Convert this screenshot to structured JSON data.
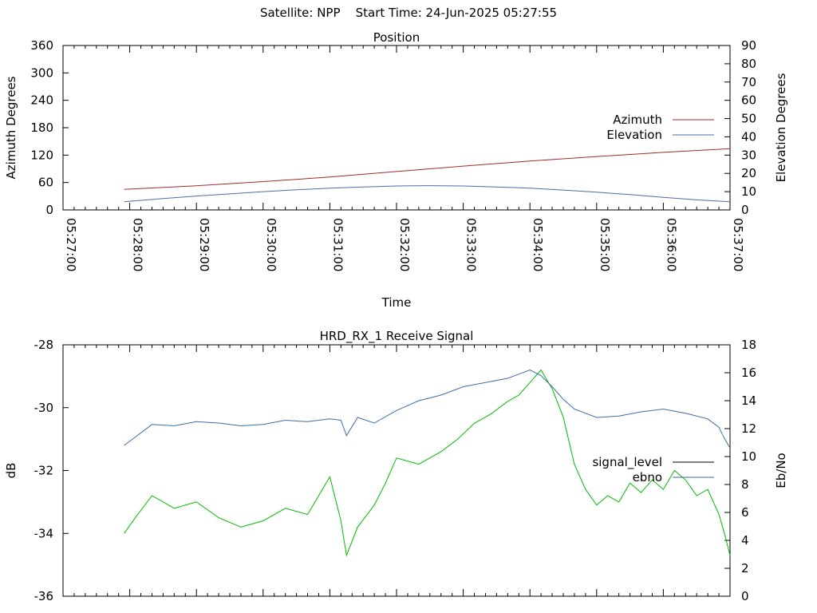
{
  "header": {
    "satellite_label": "Satellite: NPP",
    "start_time_label": "Start Time: 24-Jun-2025 05:27:55"
  },
  "chart_data": [
    {
      "type": "line",
      "title": "Position",
      "xlabel": "Time",
      "ylabel": "Azimuth Degrees",
      "y2label": "Elevation Degrees",
      "xlim": [
        "05:27:00",
        "05:37:00"
      ],
      "ylim": [
        0,
        360
      ],
      "y2lim": [
        0,
        90
      ],
      "x_ticks": [
        "05:27:00",
        "05:28:00",
        "05:29:00",
        "05:30:00",
        "05:31:00",
        "05:32:00",
        "05:33:00",
        "05:34:00",
        "05:35:00",
        "05:36:00",
        "05:37:00"
      ],
      "y_ticks": [
        "0",
        "60",
        "120",
        "180",
        "240",
        "300",
        "360"
      ],
      "y2_ticks": [
        "0",
        "10",
        "20",
        "30",
        "40",
        "50",
        "60",
        "70",
        "80",
        "90"
      ],
      "legend_position": "right-middle",
      "series": [
        {
          "name": "Azimuth",
          "axis": "y",
          "color": "#a52a2a",
          "x": [
            "05:27:55",
            "05:29:00",
            "05:30:00",
            "05:31:00",
            "05:32:00",
            "05:33:00",
            "05:34:00",
            "05:35:00",
            "05:36:00",
            "05:37:00"
          ],
          "values": [
            45,
            53,
            62,
            72,
            84,
            96,
            107,
            117,
            126,
            134
          ]
        },
        {
          "name": "Elevation",
          "axis": "y2",
          "color": "#4a6fa0",
          "x": [
            "05:27:55",
            "05:28:30",
            "05:29:00",
            "05:29:30",
            "05:30:00",
            "05:30:30",
            "05:31:00",
            "05:31:30",
            "05:32:00",
            "05:32:30",
            "05:33:00",
            "05:33:30",
            "05:34:00",
            "05:34:30",
            "05:35:00",
            "05:35:30",
            "05:36:00",
            "05:36:30",
            "05:37:00"
          ],
          "values": [
            4.5,
            6.2,
            7.6,
            8.8,
            10.0,
            11.0,
            11.9,
            12.6,
            13.1,
            13.3,
            13.1,
            12.6,
            11.9,
            10.9,
            9.7,
            8.4,
            6.9,
            5.5,
            4.5
          ]
        }
      ]
    },
    {
      "type": "line",
      "title": "HRD_RX_1 Receive Signal",
      "xlabel": "",
      "ylabel": "dB",
      "y2label": "Eb/No",
      "xlim": [
        "05:27:00",
        "05:37:00"
      ],
      "ylim": [
        -36,
        -28
      ],
      "y2lim": [
        0,
        18
      ],
      "y_ticks": [
        "-28",
        "-30",
        "-32",
        "-34",
        "-36"
      ],
      "y2_ticks": [
        "0",
        "2",
        "4",
        "6",
        "8",
        "10",
        "12",
        "14",
        "16",
        "18"
      ],
      "legend_position": "right-middle",
      "series": [
        {
          "name": "signal_level",
          "axis": "y",
          "color": "#00bb00",
          "legend_color": "#000000",
          "x": [
            "05:27:55",
            "05:28:05",
            "05:28:20",
            "05:28:40",
            "05:29:00",
            "05:29:20",
            "05:29:40",
            "05:30:00",
            "05:30:20",
            "05:30:40",
            "05:30:50",
            "05:31:00",
            "05:31:10",
            "05:31:15",
            "05:31:25",
            "05:31:40",
            "05:31:50",
            "05:32:00",
            "05:32:20",
            "05:32:40",
            "05:32:55",
            "05:33:10",
            "05:33:25",
            "05:33:40",
            "05:33:50",
            "05:34:00",
            "05:34:10",
            "05:34:20",
            "05:34:30",
            "05:34:40",
            "05:34:50",
            "05:35:00",
            "05:35:10",
            "05:35:20",
            "05:35:30",
            "05:35:40",
            "05:35:50",
            "05:36:00",
            "05:36:10",
            "05:36:20",
            "05:36:30",
            "05:36:40",
            "05:36:50",
            "05:36:55",
            "05:37:00"
          ],
          "values": [
            -34.0,
            -33.5,
            -32.8,
            -33.2,
            -33.0,
            -33.5,
            -33.8,
            -33.6,
            -33.2,
            -33.4,
            -32.8,
            -32.2,
            -33.6,
            -34.7,
            -33.8,
            -33.1,
            -32.4,
            -31.6,
            -31.8,
            -31.4,
            -31.0,
            -30.5,
            -30.2,
            -29.8,
            -29.6,
            -29.2,
            -28.8,
            -29.4,
            -30.3,
            -31.8,
            -32.6,
            -33.1,
            -32.8,
            -33.0,
            -32.4,
            -32.7,
            -32.3,
            -32.6,
            -32.0,
            -32.3,
            -32.8,
            -32.6,
            -33.4,
            -34.0,
            -34.7
          ]
        },
        {
          "name": "ebno",
          "axis": "y2",
          "color": "#3a6ea5",
          "x": [
            "05:27:55",
            "05:28:05",
            "05:28:20",
            "05:28:40",
            "05:29:00",
            "05:29:20",
            "05:29:40",
            "05:30:00",
            "05:30:20",
            "05:30:40",
            "05:31:00",
            "05:31:10",
            "05:31:15",
            "05:31:25",
            "05:31:40",
            "05:32:00",
            "05:32:20",
            "05:32:40",
            "05:33:00",
            "05:33:20",
            "05:33:40",
            "05:33:50",
            "05:34:00",
            "05:34:10",
            "05:34:20",
            "05:34:30",
            "05:34:40",
            "05:35:00",
            "05:35:20",
            "05:35:40",
            "05:36:00",
            "05:36:20",
            "05:36:40",
            "05:36:50",
            "05:36:55",
            "05:37:00"
          ],
          "values": [
            10.8,
            11.4,
            12.3,
            12.2,
            12.5,
            12.4,
            12.2,
            12.3,
            12.6,
            12.5,
            12.7,
            12.6,
            11.5,
            12.8,
            12.4,
            13.3,
            14.0,
            14.4,
            15.0,
            15.3,
            15.6,
            15.9,
            16.2,
            15.8,
            15.0,
            14.1,
            13.4,
            12.8,
            12.9,
            13.2,
            13.4,
            13.1,
            12.7,
            12.1,
            11.3,
            10.6
          ]
        }
      ]
    }
  ]
}
